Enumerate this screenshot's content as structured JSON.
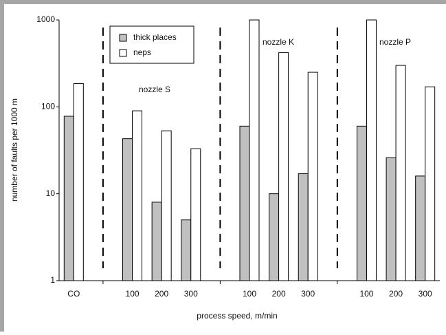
{
  "chart_data": {
    "type": "bar",
    "y_label": "number of faults per 1000 m",
    "x_label": "process speed, m/min",
    "categories": [
      "CO",
      null,
      "100",
      "200",
      "300",
      null,
      "100",
      "200",
      "300",
      null,
      "100",
      "200",
      "300"
    ],
    "series": [
      {
        "name": "thick places",
        "color": "#c0c0c0",
        "values": [
          78,
          null,
          43,
          8,
          5,
          null,
          60,
          10,
          17,
          null,
          60,
          26,
          16
        ]
      },
      {
        "name": "neps",
        "color": "#ffffff",
        "values": [
          185,
          null,
          90,
          53,
          33,
          null,
          1000,
          420,
          250,
          null,
          1000,
          300,
          170
        ]
      }
    ],
    "annotations": [
      "nozzle S",
      "nozzle K",
      "nozzle P"
    ],
    "ylim": [
      1,
      1000
    ],
    "yticks": [
      1,
      10,
      100,
      1000
    ],
    "log_scale": true
  }
}
